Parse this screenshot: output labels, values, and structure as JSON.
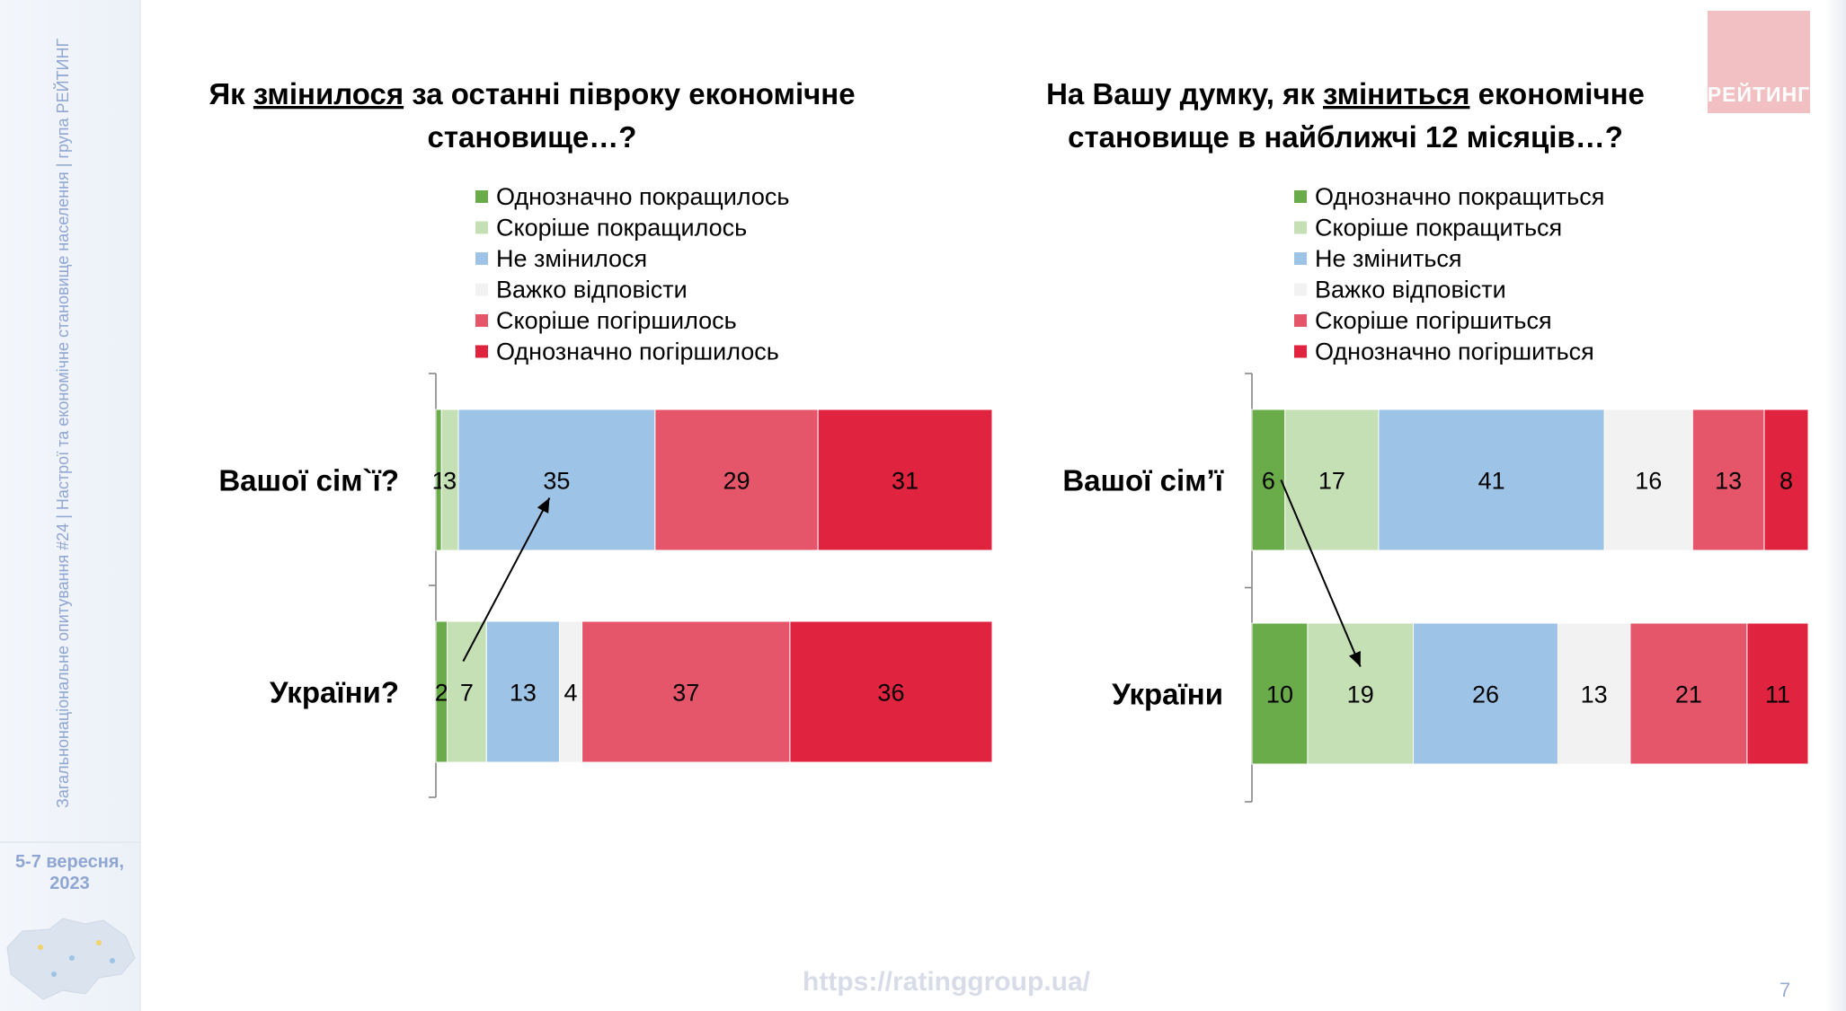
{
  "sidebar": {
    "vertical_text": "Загальнонаціональне опитування #24 | Настрої та економічне становище населення | група РЕЙТИНГ",
    "date_line1": "5-7 вересня,",
    "date_line2": "2023",
    "map_icon": "ukraine-map-icon"
  },
  "logo": {
    "text": "РЕЙТИНГ",
    "color": "#f2c0c2"
  },
  "footer": {
    "url": "https://ratinggroup.ua/",
    "page_number": "7"
  },
  "colors": {
    "definitely_better": "#6aab4a",
    "rather_better": "#c5e0b4",
    "unchanged": "#9dc3e6",
    "hard_to_say": "#f2f2f2",
    "rather_worse": "#e5566b",
    "definitely_worse": "#e0233f"
  },
  "chart_data": [
    {
      "type": "bar",
      "orientation": "horizontal",
      "stacked": true,
      "title_parts": [
        "Як ",
        "змінилося",
        " за останні півроку економічне",
        "становище…?"
      ],
      "title_underlined_part": 1,
      "categories": [
        "Вашої сім`ї?",
        "України?"
      ],
      "series": [
        {
          "name": "Однозначно покращилось",
          "values": [
            1,
            2
          ]
        },
        {
          "name": "Скоріше покращилось",
          "values": [
            3,
            7
          ]
        },
        {
          "name": "Не змінилося",
          "values": [
            35,
            13
          ]
        },
        {
          "name": "Важко відповісти",
          "values": [
            null,
            4
          ]
        },
        {
          "name": "Скоріше погіршилось",
          "values": [
            29,
            37
          ]
        },
        {
          "name": "Однозначно погіршилось",
          "values": [
            31,
            36
          ]
        }
      ],
      "labels": [
        [
          "1",
          "3",
          "35",
          "",
          "29",
          "31"
        ],
        [
          "2",
          "7",
          "13",
          "4",
          "37",
          "36"
        ]
      ],
      "annotation": "arrow from Україна 'Скоріше покращилось' to Вашої сім'ї 'Не змінилося'",
      "legend_position": "top"
    },
    {
      "type": "bar",
      "orientation": "horizontal",
      "stacked": true,
      "title_parts": [
        "На Вашу думку, як ",
        "зміниться",
        " економічне",
        "становище в найближчі 12 місяців…?"
      ],
      "title_underlined_part": 1,
      "categories": [
        "Вашої сім’ї",
        "України"
      ],
      "series": [
        {
          "name": "Однозначно покращиться",
          "values": [
            6,
            10
          ]
        },
        {
          "name": "Скоріше покращиться",
          "values": [
            17,
            19
          ]
        },
        {
          "name": "Не зміниться",
          "values": [
            41,
            26
          ]
        },
        {
          "name": "Важко відповісти",
          "values": [
            16,
            13
          ]
        },
        {
          "name": "Скоріше погіршиться",
          "values": [
            13,
            21
          ]
        },
        {
          "name": "Однозначно погіршиться",
          "values": [
            8,
            11
          ]
        }
      ],
      "labels": [
        [
          "6",
          "17",
          "41",
          "16",
          "13",
          "8"
        ],
        [
          "10",
          "19",
          "26",
          "13",
          "21",
          "11"
        ]
      ],
      "annotation": "arrow from Вашої сім'ї 'Однозначно покращиться' to Україна 'Скоріше покращиться'",
      "legend_position": "top"
    }
  ]
}
